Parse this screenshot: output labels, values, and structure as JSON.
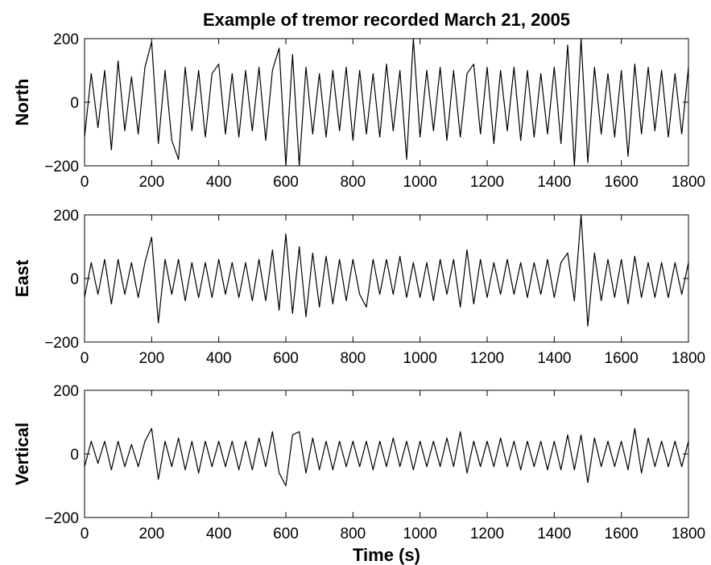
{
  "chart_data": [
    {
      "type": "line",
      "title": "Example of tremor recorded March 21, 2005",
      "ylabel": "North",
      "color": "#000000",
      "x": [
        0,
        20,
        40,
        60,
        80,
        100,
        120,
        140,
        160,
        180,
        200,
        220,
        240,
        260,
        280,
        300,
        320,
        340,
        360,
        380,
        400,
        420,
        440,
        460,
        480,
        500,
        520,
        540,
        560,
        580,
        600,
        620,
        640,
        660,
        680,
        700,
        720,
        740,
        760,
        780,
        800,
        820,
        840,
        860,
        880,
        900,
        920,
        940,
        960,
        980,
        1000,
        1020,
        1040,
        1060,
        1080,
        1100,
        1120,
        1140,
        1160,
        1180,
        1200,
        1220,
        1240,
        1260,
        1280,
        1300,
        1320,
        1340,
        1360,
        1380,
        1400,
        1420,
        1440,
        1460,
        1480,
        1500,
        1520,
        1540,
        1560,
        1580,
        1600,
        1620,
        1640,
        1660,
        1680,
        1700,
        1720,
        1740,
        1760,
        1780,
        1800
      ],
      "values": [
        -110,
        90,
        -80,
        100,
        -150,
        130,
        -90,
        80,
        -100,
        110,
        190,
        -130,
        100,
        -120,
        -180,
        110,
        -90,
        100,
        -110,
        90,
        120,
        -100,
        90,
        -110,
        100,
        -90,
        110,
        -120,
        100,
        170,
        -200,
        150,
        -200,
        110,
        -100,
        90,
        -110,
        100,
        -90,
        110,
        -120,
        100,
        -100,
        90,
        -110,
        120,
        -90,
        100,
        -180,
        200,
        -110,
        100,
        -90,
        110,
        -120,
        100,
        -110,
        90,
        120,
        -100,
        110,
        -130,
        100,
        -90,
        110,
        -120,
        100,
        -110,
        90,
        -100,
        110,
        -130,
        180,
        -200,
        200,
        -190,
        110,
        -100,
        90,
        -110,
        100,
        -170,
        120,
        -100,
        110,
        -90,
        100,
        -110,
        90,
        -100,
        110
      ],
      "xlim": [
        0,
        1800
      ],
      "xticks": [
        0,
        200,
        400,
        600,
        800,
        1000,
        1200,
        1400,
        1600,
        1800
      ],
      "ylim": [
        -200,
        200
      ],
      "yticks": [
        {
          "value": -200,
          "label": "−200"
        },
        0,
        200
      ]
    },
    {
      "type": "line",
      "ylabel": "East",
      "color": "#000000",
      "x": [
        0,
        20,
        40,
        60,
        80,
        100,
        120,
        140,
        160,
        180,
        200,
        220,
        240,
        260,
        280,
        300,
        320,
        340,
        360,
        380,
        400,
        420,
        440,
        460,
        480,
        500,
        520,
        540,
        560,
        580,
        600,
        620,
        640,
        660,
        680,
        700,
        720,
        740,
        760,
        780,
        800,
        820,
        840,
        860,
        880,
        900,
        920,
        940,
        960,
        980,
        1000,
        1020,
        1040,
        1060,
        1080,
        1100,
        1120,
        1140,
        1160,
        1180,
        1200,
        1220,
        1240,
        1260,
        1280,
        1300,
        1320,
        1340,
        1360,
        1380,
        1400,
        1420,
        1440,
        1460,
        1480,
        1500,
        1520,
        1540,
        1560,
        1580,
        1600,
        1620,
        1640,
        1660,
        1680,
        1700,
        1720,
        1740,
        1760,
        1780,
        1800
      ],
      "values": [
        -60,
        50,
        -50,
        60,
        -80,
        60,
        -50,
        50,
        -60,
        50,
        130,
        -140,
        60,
        -50,
        60,
        -70,
        50,
        -60,
        50,
        -60,
        60,
        -50,
        50,
        -60,
        50,
        -70,
        60,
        -70,
        90,
        -100,
        140,
        -110,
        100,
        -120,
        80,
        -90,
        70,
        -80,
        60,
        -70,
        60,
        -50,
        -90,
        60,
        -50,
        60,
        -50,
        70,
        -60,
        50,
        -60,
        50,
        -70,
        60,
        -50,
        60,
        -90,
        90,
        -80,
        60,
        -60,
        50,
        -50,
        60,
        -50,
        50,
        -60,
        50,
        -50,
        60,
        -60,
        50,
        80,
        -70,
        200,
        -150,
        80,
        -70,
        60,
        -60,
        60,
        -80,
        70,
        -60,
        50,
        -60,
        50,
        -60,
        50,
        -50,
        50
      ],
      "xlim": [
        0,
        1800
      ],
      "xticks": [
        0,
        200,
        400,
        600,
        800,
        1000,
        1200,
        1400,
        1600,
        1800
      ],
      "ylim": [
        -200,
        200
      ],
      "yticks": [
        {
          "value": -200,
          "label": "−200"
        },
        0,
        200
      ]
    },
    {
      "type": "line",
      "ylabel": "Vertical",
      "xlabel": "Time (s)",
      "color": "#000000",
      "x": [
        0,
        20,
        40,
        60,
        80,
        100,
        120,
        140,
        160,
        180,
        200,
        220,
        240,
        260,
        280,
        300,
        320,
        340,
        360,
        380,
        400,
        420,
        440,
        460,
        480,
        500,
        520,
        540,
        560,
        580,
        600,
        620,
        640,
        660,
        680,
        700,
        720,
        740,
        760,
        780,
        800,
        820,
        840,
        860,
        880,
        900,
        920,
        940,
        960,
        980,
        1000,
        1020,
        1040,
        1060,
        1080,
        1100,
        1120,
        1140,
        1160,
        1180,
        1200,
        1220,
        1240,
        1260,
        1280,
        1300,
        1320,
        1340,
        1360,
        1380,
        1400,
        1420,
        1440,
        1460,
        1480,
        1500,
        1520,
        1540,
        1560,
        1580,
        1600,
        1620,
        1640,
        1660,
        1680,
        1700,
        1720,
        1740,
        1760,
        1780,
        1800
      ],
      "values": [
        -40,
        40,
        -30,
        40,
        -50,
        40,
        -40,
        30,
        -40,
        40,
        80,
        -80,
        40,
        -40,
        50,
        -50,
        40,
        -60,
        40,
        -40,
        40,
        -40,
        40,
        -50,
        40,
        -50,
        50,
        -40,
        70,
        -60,
        -100,
        60,
        70,
        -60,
        50,
        -50,
        40,
        -50,
        40,
        -40,
        40,
        -40,
        40,
        -50,
        40,
        -40,
        50,
        -40,
        40,
        -50,
        40,
        -40,
        40,
        -40,
        50,
        -40,
        70,
        -60,
        40,
        -40,
        40,
        -40,
        50,
        -40,
        40,
        -50,
        40,
        -40,
        40,
        -50,
        40,
        -50,
        60,
        -50,
        60,
        -90,
        50,
        -40,
        40,
        -40,
        40,
        -50,
        80,
        -60,
        50,
        -40,
        40,
        -40,
        40,
        -40,
        40
      ],
      "xlim": [
        0,
        1800
      ],
      "xticks": [
        0,
        200,
        400,
        600,
        800,
        1000,
        1200,
        1400,
        1600,
        1800
      ],
      "ylim": [
        -200,
        200
      ],
      "yticks": [
        {
          "value": -200,
          "label": "−200"
        },
        0,
        200
      ]
    }
  ]
}
